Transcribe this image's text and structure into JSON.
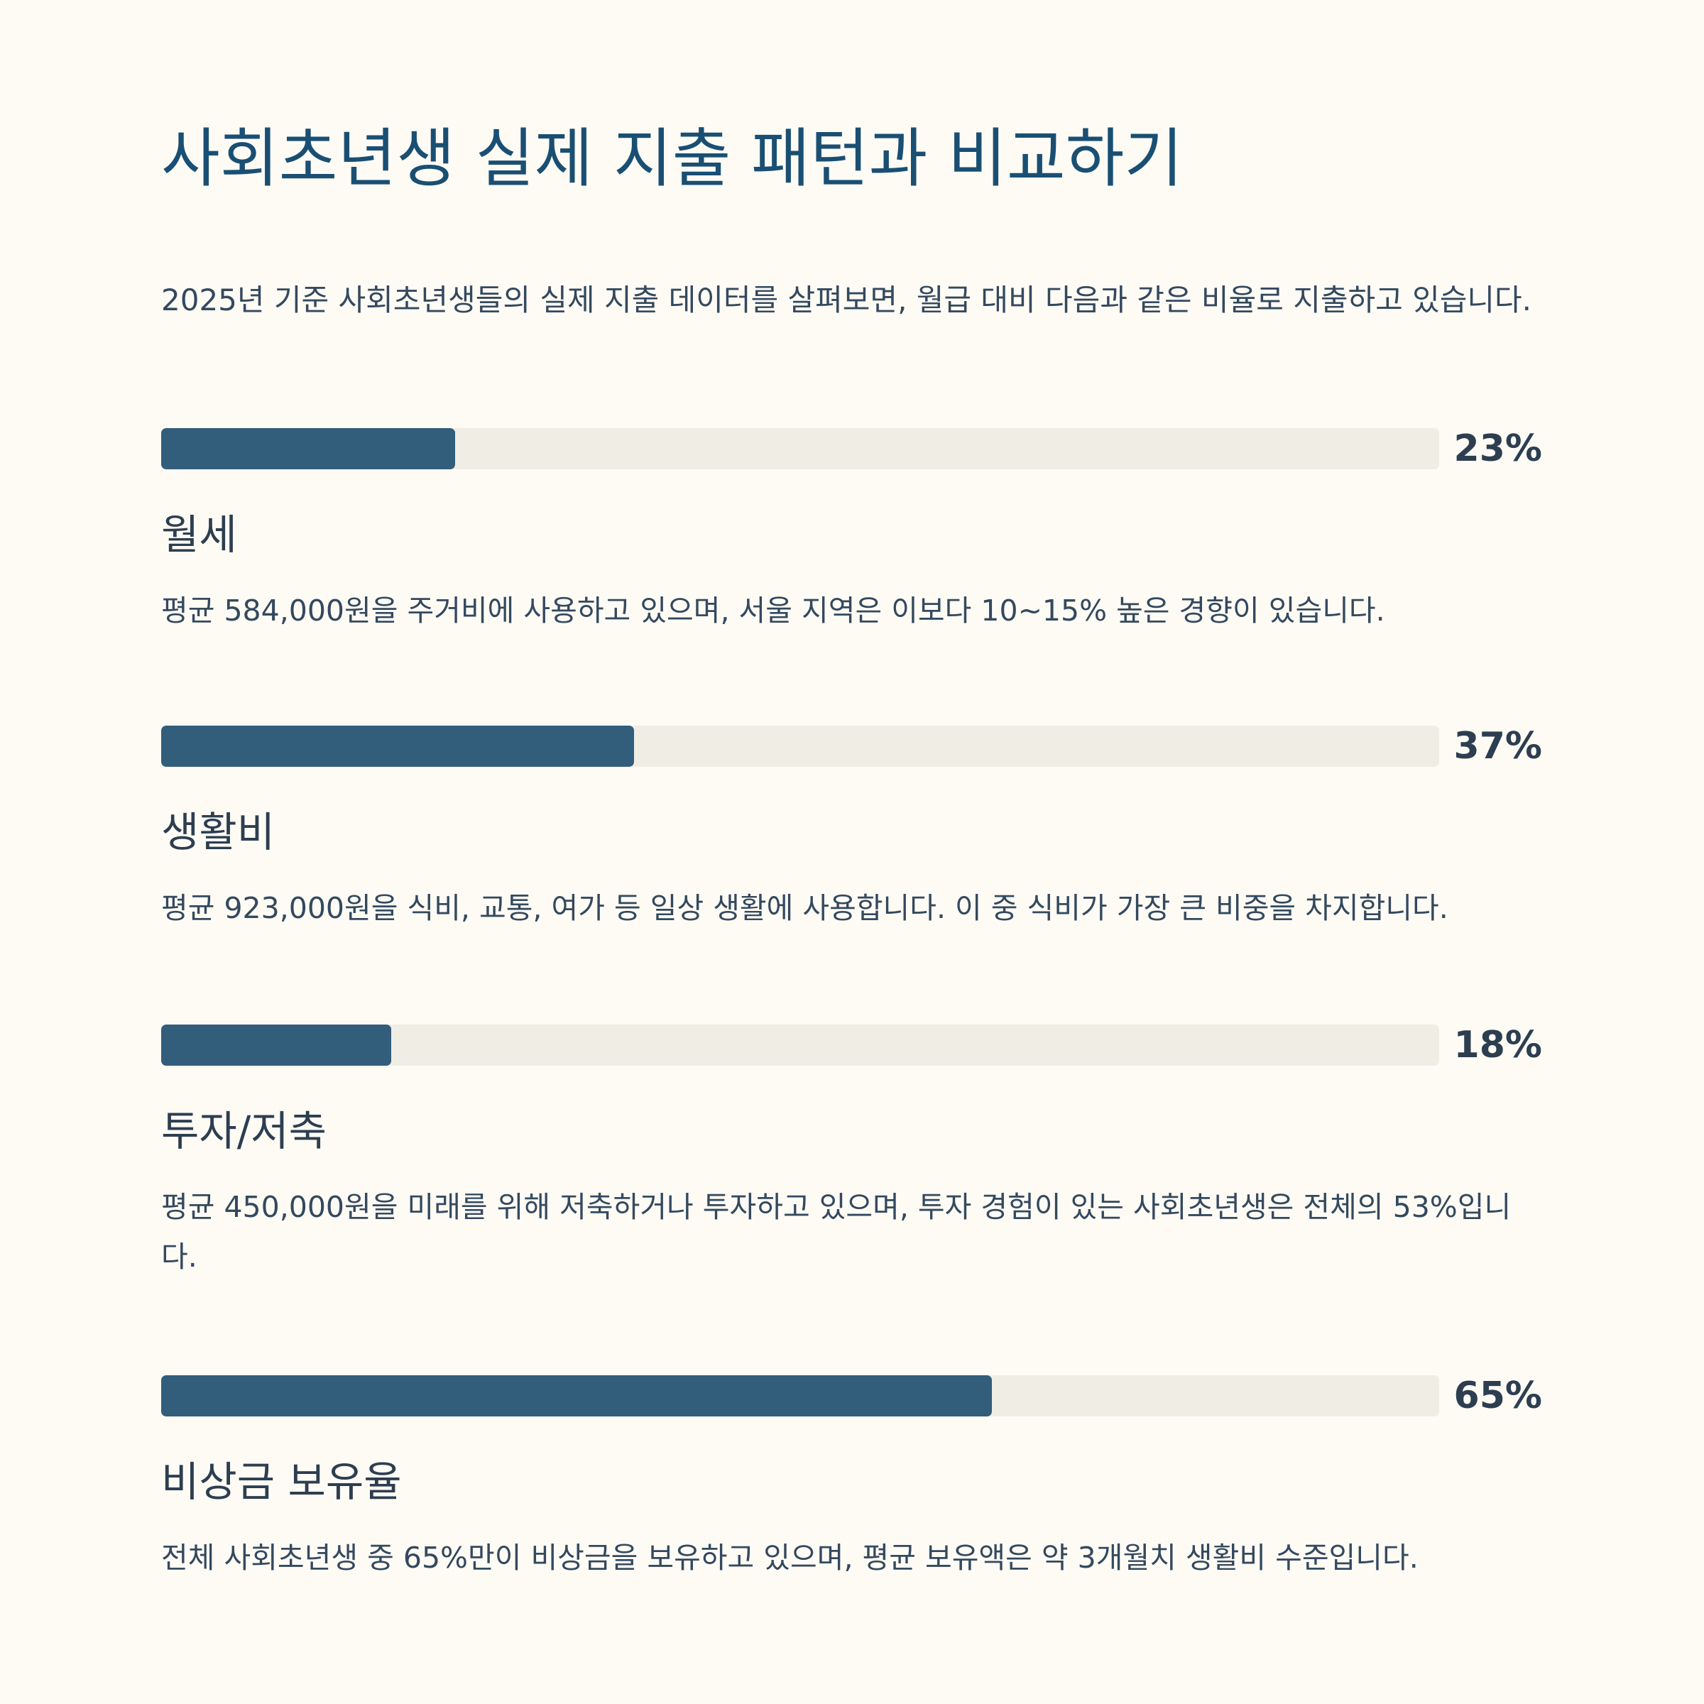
{
  "title": "사회초년생 실제 지출 패턴과 비교하기",
  "intro": "2025년 기준 사회초년생들의 실제 지출 데이터를 살펴보면, 월급 대비 다음과 같은 비율로 지출하고 있습니다.",
  "colors": {
    "background": "#fefbf5",
    "title": "#1a4f73",
    "bar_fill": "#325d7b",
    "bar_track": "#f0ede5",
    "text": "#2d3e50"
  },
  "items": [
    {
      "percent_label": "23%",
      "percent": 23,
      "label": "월세",
      "description": "평균 584,000원을 주거비에 사용하고 있으며, 서울 지역은 이보다 10~15% 높은 경향이 있습니다."
    },
    {
      "percent_label": "37%",
      "percent": 37,
      "label": "생활비",
      "description": "평균 923,000원을 식비, 교통, 여가 등 일상 생활에 사용합니다. 이 중 식비가 가장 큰 비중을 차지합니다."
    },
    {
      "percent_label": "18%",
      "percent": 18,
      "label": "투자/저축",
      "description": "평균 450,000원을 미래를 위해 저축하거나 투자하고 있으며, 투자 경험이 있는 사회초년생은 전체의 53%입니다."
    },
    {
      "percent_label": "65%",
      "percent": 65,
      "label": "비상금 보유율",
      "description": "전체 사회초년생 중 65%만이 비상금을 보유하고 있으며, 평균 보유액은 약 3개월치 생활비 수준입니다."
    }
  ]
}
